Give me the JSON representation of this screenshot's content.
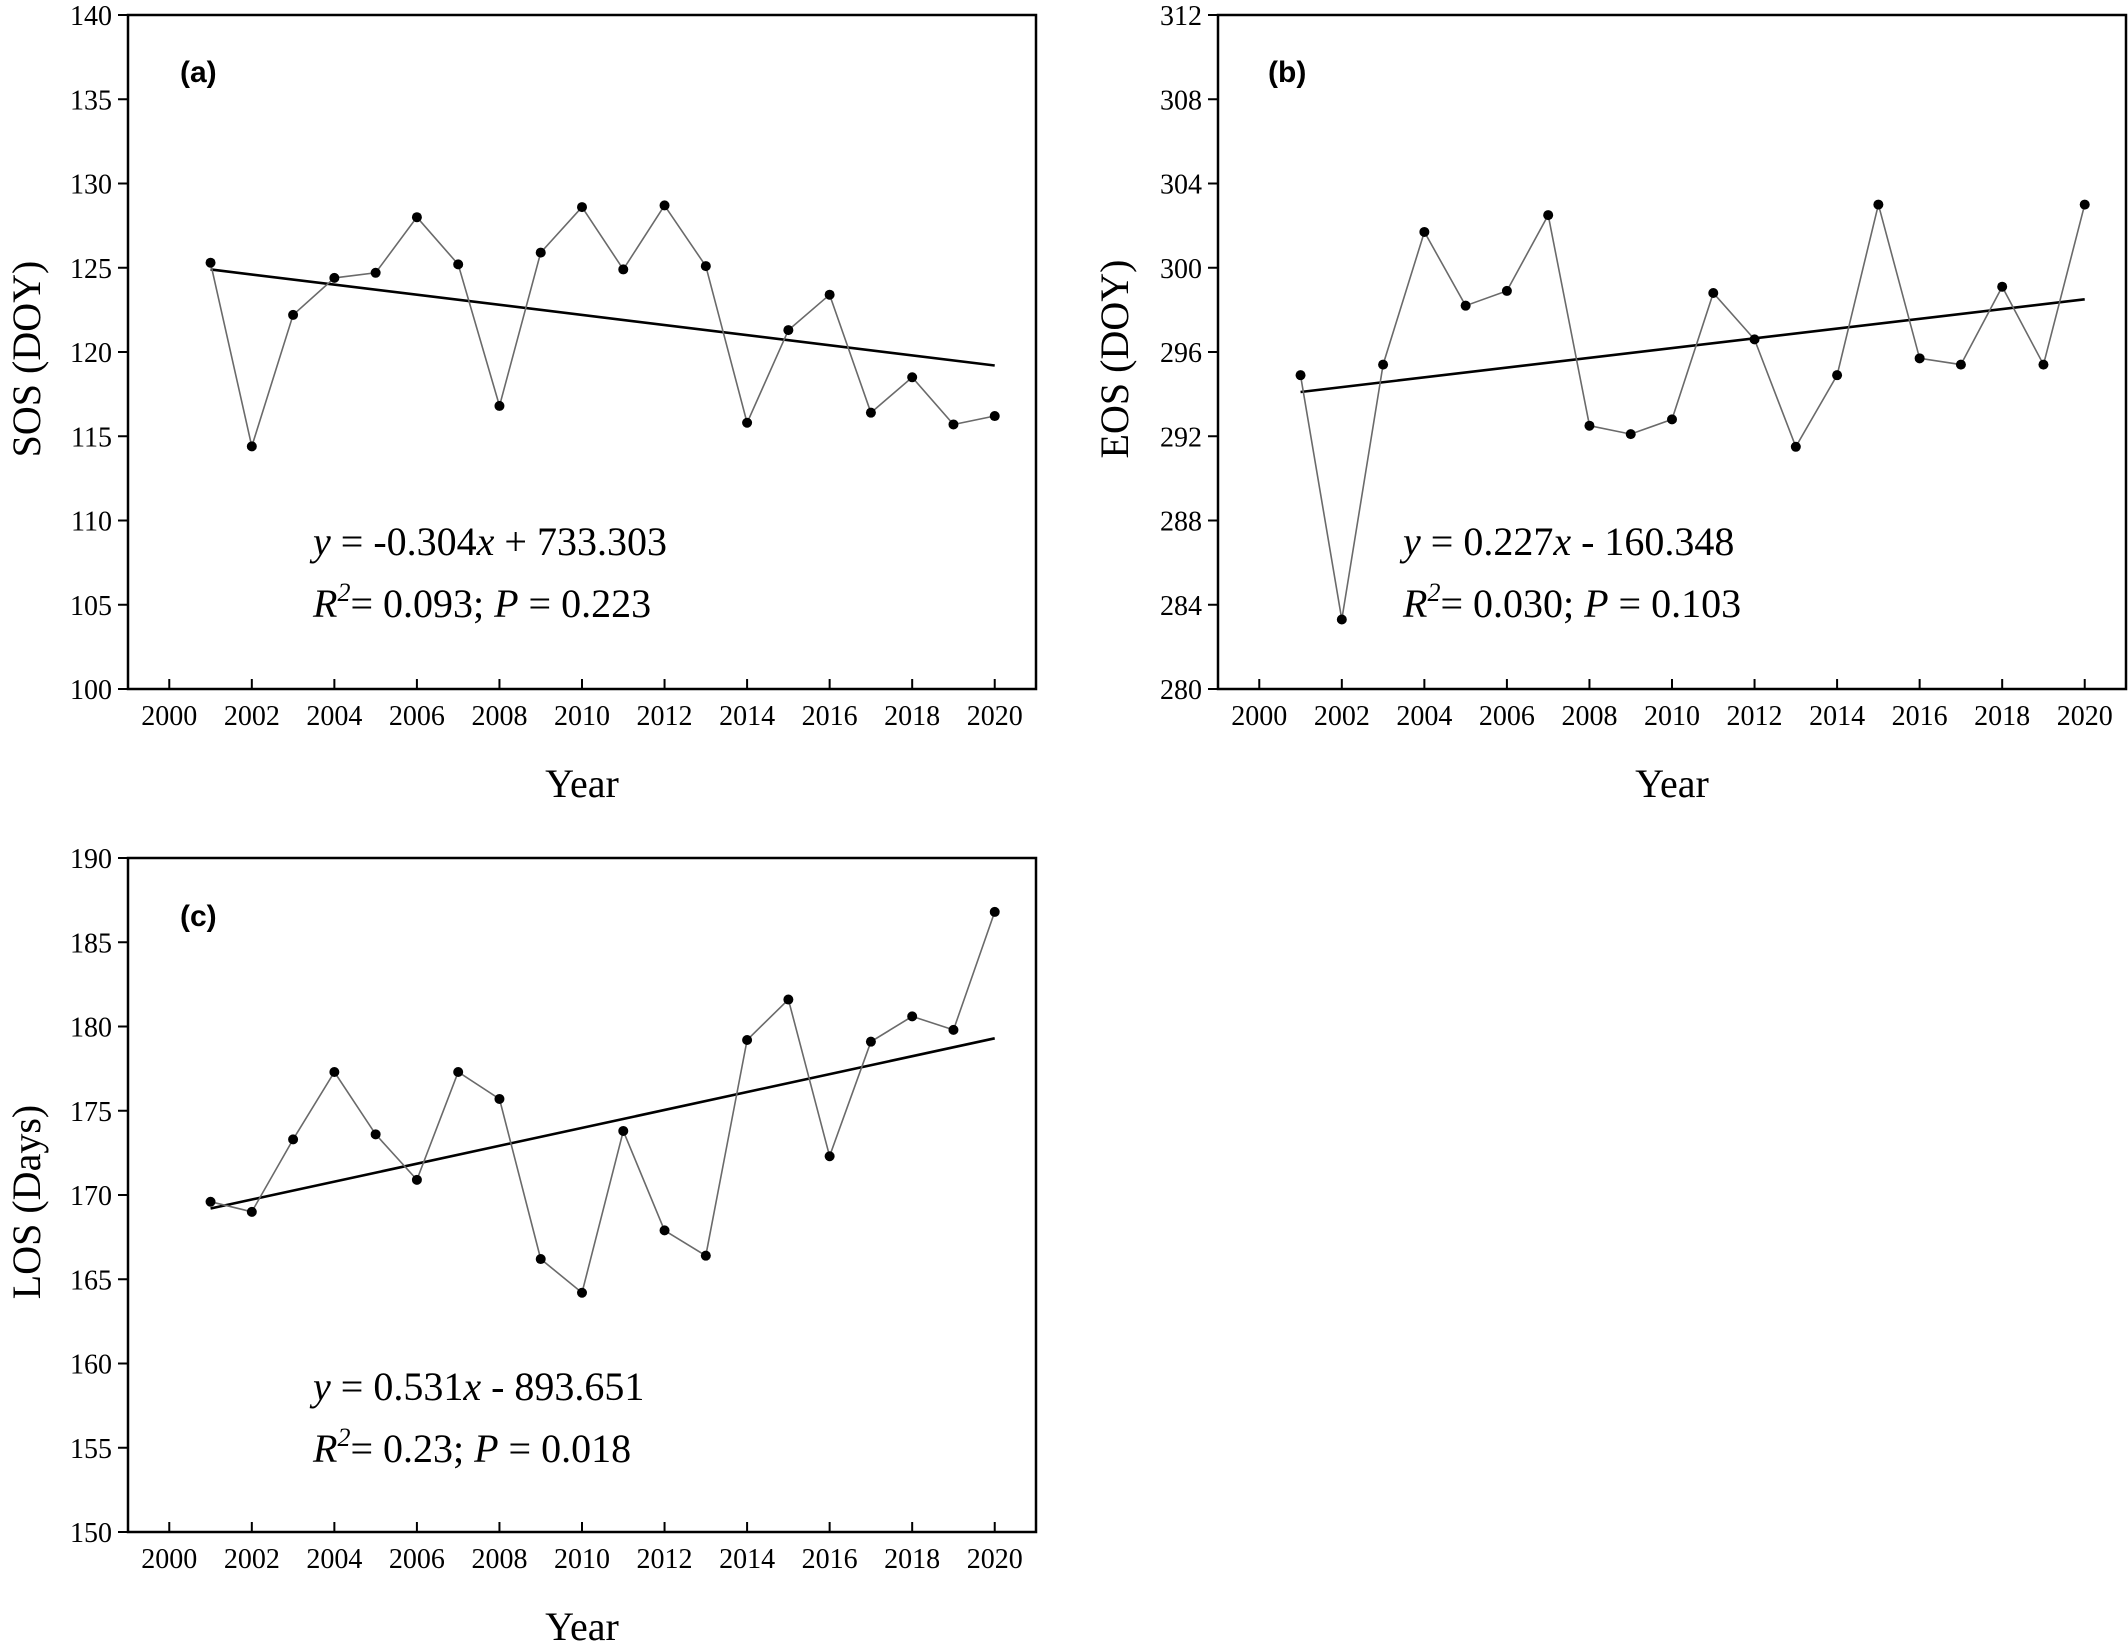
{
  "chart_data": [
    {
      "type": "line",
      "panel_label": "(a)",
      "xlabel": "Year",
      "ylabel": "SOS (DOY)",
      "xlim": [
        1999,
        2021
      ],
      "ylim": [
        100,
        140
      ],
      "xticks": [
        2000,
        2002,
        2004,
        2006,
        2008,
        2010,
        2012,
        2014,
        2016,
        2018,
        2020
      ],
      "yticks": [
        100,
        105,
        110,
        115,
        120,
        125,
        130,
        135,
        140
      ],
      "series": [
        {
          "x": [
            2001,
            2002,
            2003,
            2004,
            2005,
            2006,
            2007,
            2008,
            2009,
            2010,
            2011,
            2012,
            2013,
            2014,
            2015,
            2016,
            2017,
            2018,
            2019,
            2020
          ],
          "values": [
            125.3,
            114.4,
            122.2,
            124.4,
            124.7,
            128.0,
            125.2,
            116.8,
            125.9,
            128.6,
            124.9,
            128.7,
            125.1,
            115.8,
            121.3,
            123.4,
            116.4,
            118.5,
            115.7,
            116.2
          ]
        }
      ],
      "trend": {
        "x": [
          2001,
          2020
        ],
        "y": [
          124.9,
          119.2
        ]
      },
      "equation": {
        "y_var": "y",
        "eq_rest": " = -0.304",
        "x_var": "x",
        "eq_tail": " + 733.303",
        "r_var": "R",
        "r_sup": "2",
        "r_rest": "= 0.093; ",
        "p_var": "P",
        "p_rest": " = 0.223"
      }
    },
    {
      "type": "line",
      "panel_label": "(b)",
      "xlabel": "Year",
      "ylabel": "EOS (DOY)",
      "xlim": [
        1999,
        2021
      ],
      "ylim": [
        280,
        312
      ],
      "xticks": [
        2000,
        2002,
        2004,
        2006,
        2008,
        2010,
        2012,
        2014,
        2016,
        2018,
        2020
      ],
      "yticks": [
        280,
        284,
        288,
        292,
        296,
        300,
        304,
        308,
        312
      ],
      "series": [
        {
          "x": [
            2001,
            2002,
            2003,
            2004,
            2005,
            2006,
            2007,
            2008,
            2009,
            2010,
            2011,
            2012,
            2013,
            2014,
            2015,
            2016,
            2017,
            2018,
            2019,
            2020
          ],
          "values": [
            294.9,
            283.3,
            295.4,
            301.7,
            298.2,
            298.9,
            302.5,
            292.5,
            292.1,
            292.8,
            298.8,
            296.6,
            291.5,
            294.9,
            303.0,
            295.7,
            295.4,
            299.1,
            295.4,
            303.0
          ]
        }
      ],
      "trend": {
        "x": [
          2001,
          2020
        ],
        "y": [
          294.1,
          298.5
        ]
      },
      "equation": {
        "y_var": "y",
        "eq_rest": " = 0.227",
        "x_var": "x",
        "eq_tail": " - 160.348",
        "r_var": "R",
        "r_sup": "2",
        "r_rest": "= 0.030; ",
        "p_var": "P",
        "p_rest": " = 0.103"
      }
    },
    {
      "type": "line",
      "panel_label": "(c)",
      "xlabel": "Year",
      "ylabel": "LOS (Days)",
      "xlim": [
        1999,
        2021
      ],
      "ylim": [
        150,
        190
      ],
      "xticks": [
        2000,
        2002,
        2004,
        2006,
        2008,
        2010,
        2012,
        2014,
        2016,
        2018,
        2020
      ],
      "yticks": [
        150,
        155,
        160,
        165,
        170,
        175,
        180,
        185,
        190
      ],
      "series": [
        {
          "x": [
            2001,
            2002,
            2003,
            2004,
            2005,
            2006,
            2007,
            2008,
            2009,
            2010,
            2011,
            2012,
            2013,
            2014,
            2015,
            2016,
            2017,
            2018,
            2019,
            2020
          ],
          "values": [
            169.6,
            169.0,
            173.3,
            177.3,
            173.6,
            170.9,
            177.3,
            175.7,
            166.2,
            164.2,
            173.8,
            167.9,
            166.4,
            179.2,
            181.6,
            172.3,
            179.1,
            180.6,
            179.8,
            186.8
          ]
        }
      ],
      "trend": {
        "x": [
          2001,
          2020
        ],
        "y": [
          169.2,
          179.3
        ]
      },
      "equation": {
        "y_var": "y",
        "eq_rest": " = 0.531",
        "x_var": "x",
        "eq_tail": " - 893.651",
        "r_var": "R",
        "r_sup": "2",
        "r_rest": "= 0.23; ",
        "p_var": "P",
        "p_rest": " = 0.018"
      }
    }
  ]
}
